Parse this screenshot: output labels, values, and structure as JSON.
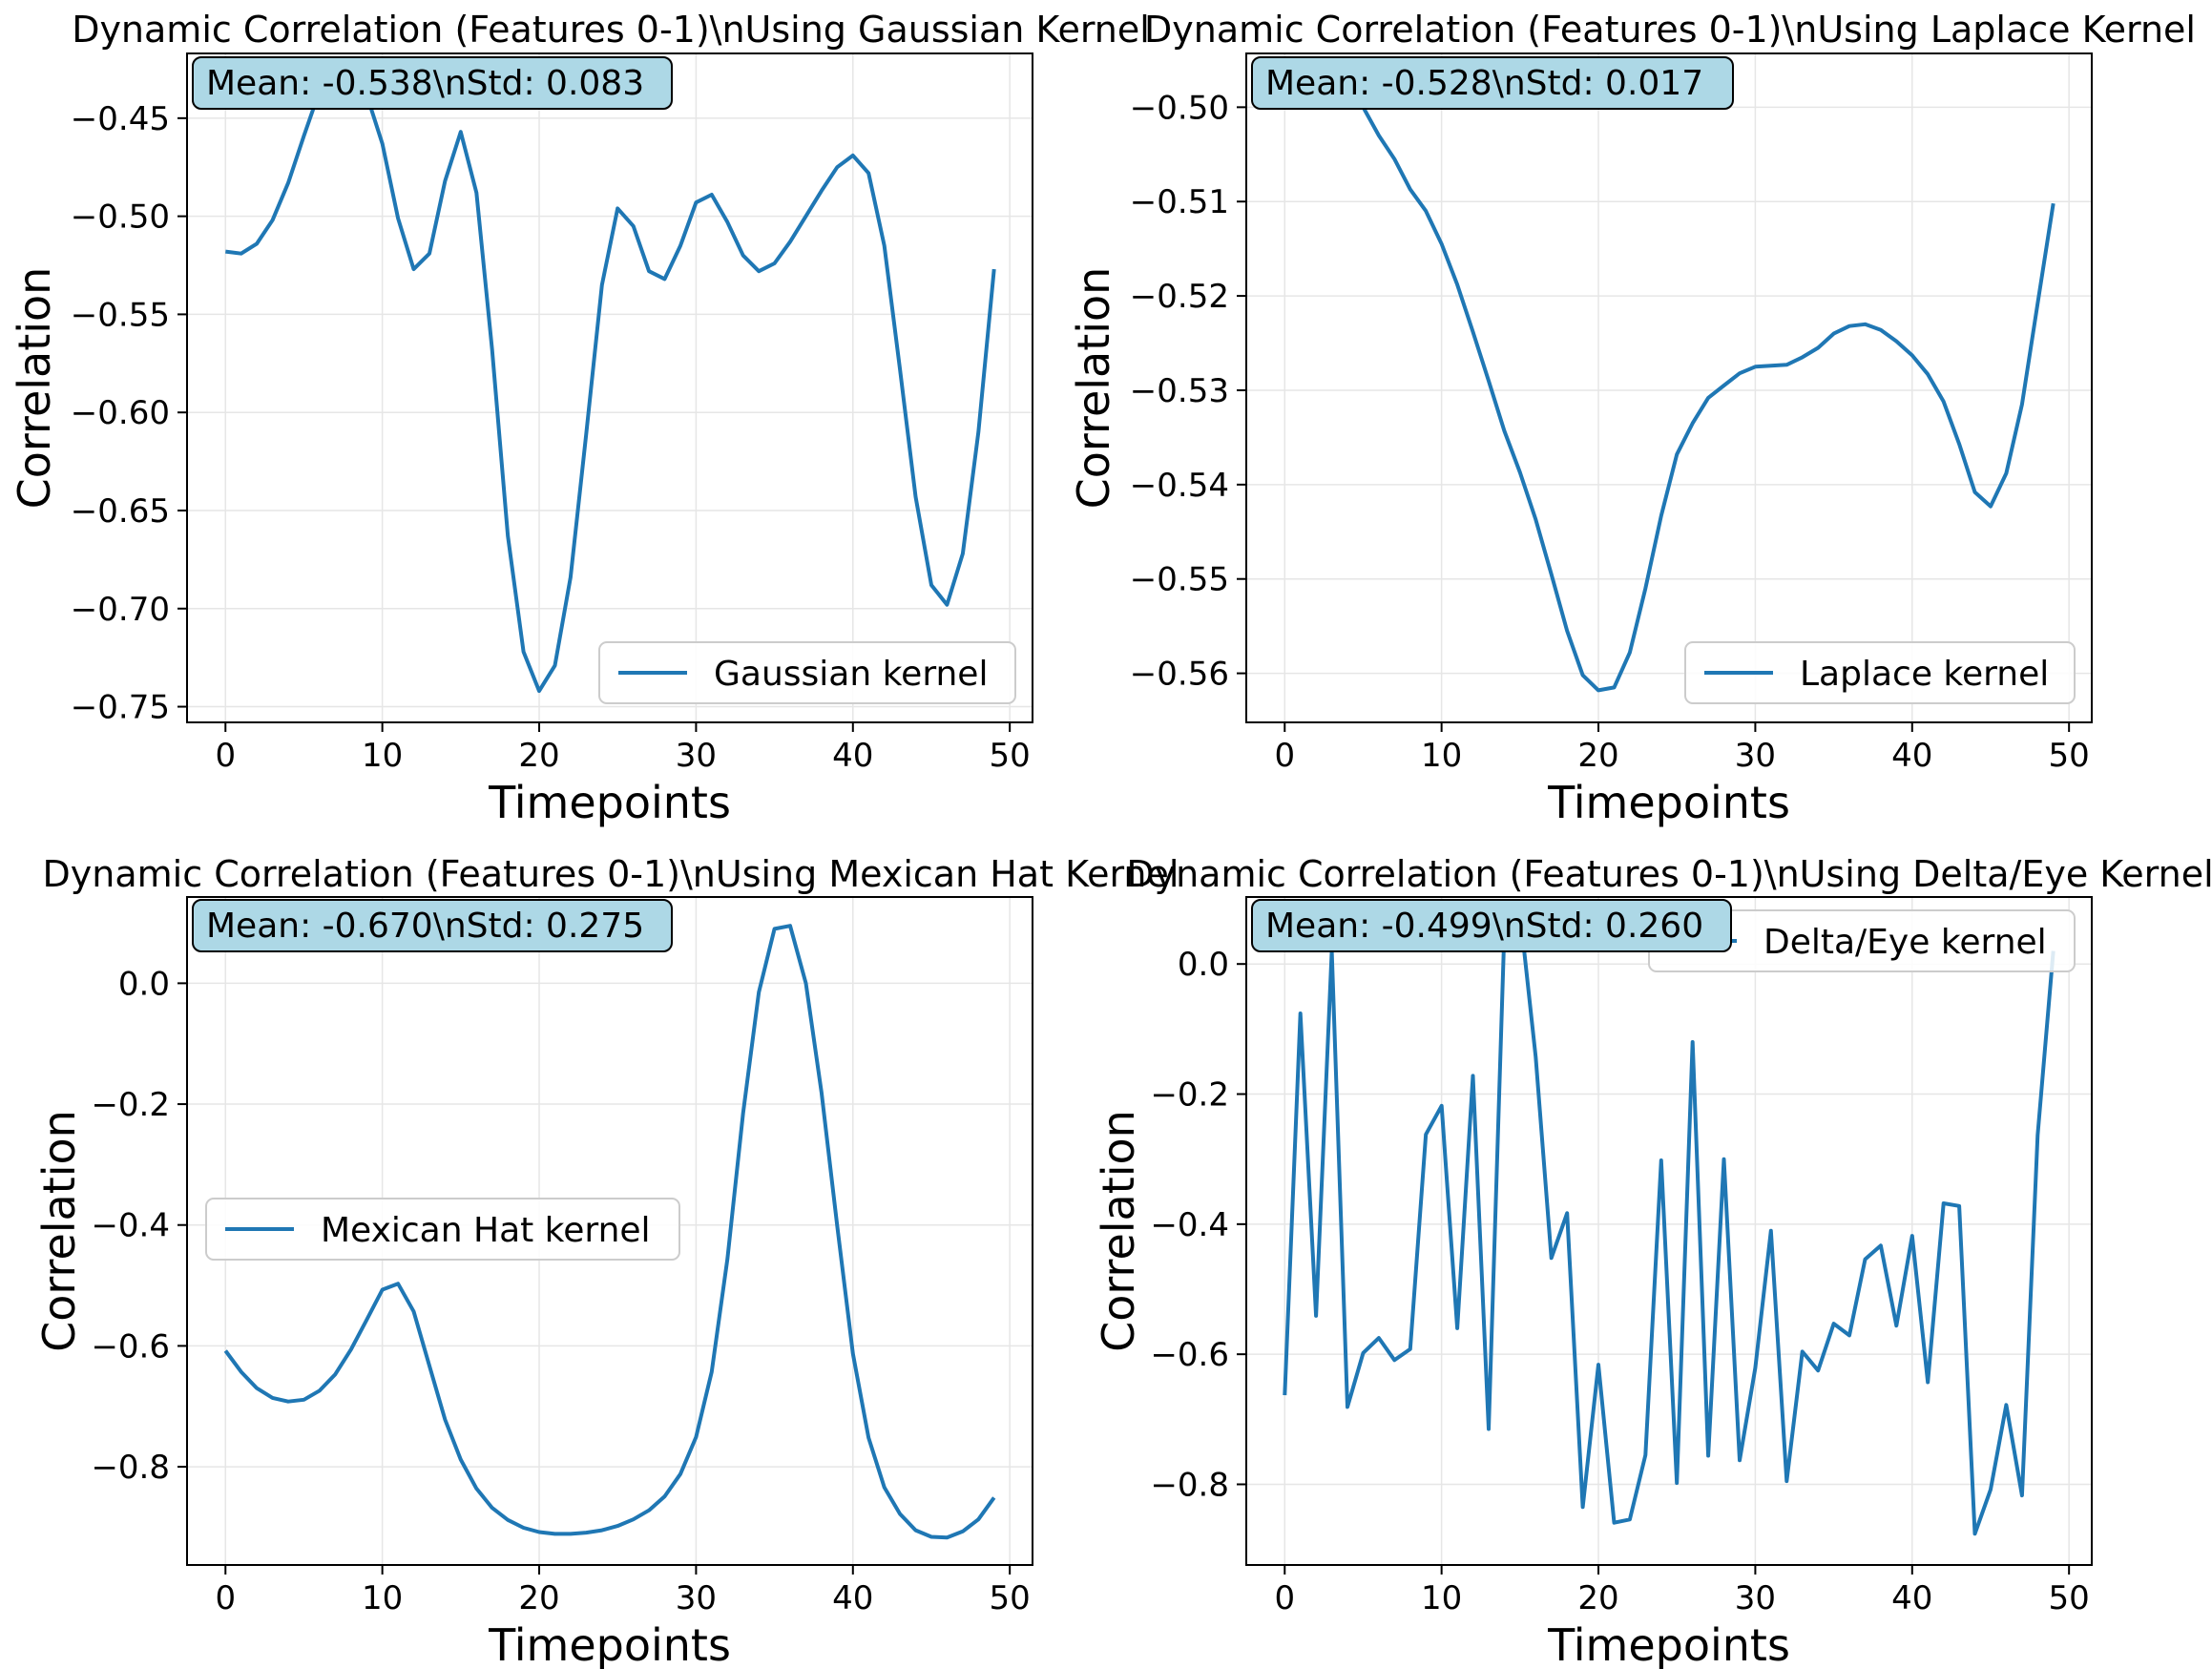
{
  "chart_data": [
    {
      "type": "line",
      "title": "Dynamic Correlation (Features 0-1)\\nUsing Gaussian Kernel",
      "xlabel": "Timepoints",
      "ylabel": "Correlation",
      "xlim": [
        -2.45,
        51.45
      ],
      "ylim": [
        -0.758,
        -0.417
      ],
      "xticks": [
        0,
        10,
        20,
        30,
        40,
        50
      ],
      "yticks": [
        -0.75,
        -0.7,
        -0.65,
        -0.6,
        -0.55,
        -0.5,
        -0.45
      ],
      "ytick_labels": [
        "−0.75",
        "−0.70",
        "−0.65",
        "−0.60",
        "−0.55",
        "−0.50",
        "−0.45"
      ],
      "grid": true,
      "legend": "lower-right",
      "stats_box": "Mean: -0.538\\nStd: 0.083",
      "series": [
        {
          "name": "Gaussian kernel",
          "x": [
            0,
            1,
            2,
            3,
            4,
            5,
            6,
            7,
            8,
            9,
            10,
            11,
            12,
            13,
            14,
            15,
            16,
            17,
            18,
            19,
            20,
            21,
            22,
            23,
            24,
            25,
            26,
            27,
            28,
            29,
            30,
            31,
            32,
            33,
            34,
            35,
            36,
            37,
            38,
            39,
            40,
            41,
            42,
            43,
            44,
            45,
            46,
            47,
            48,
            49
          ],
          "values": [
            -0.518,
            -0.519,
            -0.514,
            -0.502,
            -0.483,
            -0.459,
            -0.436,
            -0.423,
            -0.427,
            -0.438,
            -0.463,
            -0.501,
            -0.527,
            -0.519,
            -0.482,
            -0.457,
            -0.488,
            -0.568,
            -0.663,
            -0.722,
            -0.742,
            -0.729,
            -0.684,
            -0.611,
            -0.535,
            -0.496,
            -0.505,
            -0.528,
            -0.532,
            -0.515,
            -0.493,
            -0.489,
            -0.503,
            -0.52,
            -0.528,
            -0.524,
            -0.513,
            -0.5,
            -0.487,
            -0.475,
            -0.469,
            -0.478,
            -0.515,
            -0.578,
            -0.643,
            -0.688,
            -0.698,
            -0.672,
            -0.61,
            -0.527
          ]
        }
      ]
    },
    {
      "type": "line",
      "title": "Dynamic Correlation (Features 0-1)\\nUsing Laplace Kernel",
      "xlabel": "Timepoints",
      "ylabel": "Correlation",
      "xlim": [
        -2.45,
        51.45
      ],
      "ylim": [
        -0.5652,
        -0.4943
      ],
      "xticks": [
        0,
        10,
        20,
        30,
        40,
        50
      ],
      "yticks": [
        -0.56,
        -0.55,
        -0.54,
        -0.53,
        -0.52,
        -0.51,
        -0.5
      ],
      "ytick_labels": [
        "−0.56",
        "−0.55",
        "−0.54",
        "−0.53",
        "−0.52",
        "−0.51",
        "−0.50"
      ],
      "grid": true,
      "legend": "lower-right",
      "stats_box": "Mean: -0.528\\nStd: 0.017",
      "series": [
        {
          "name": "Laplace kernel",
          "x": [
            0,
            1,
            2,
            3,
            4,
            5,
            6,
            7,
            8,
            9,
            10,
            11,
            12,
            13,
            14,
            15,
            16,
            17,
            18,
            19,
            20,
            21,
            22,
            23,
            24,
            25,
            26,
            27,
            28,
            29,
            30,
            31,
            32,
            33,
            34,
            35,
            36,
            37,
            38,
            39,
            40,
            41,
            42,
            43,
            44,
            45,
            46,
            47,
            48,
            49
          ],
          "values": [
            -0.4965,
            -0.497,
            -0.4978,
            -0.4985,
            -0.499,
            -0.5,
            -0.503,
            -0.5055,
            -0.5087,
            -0.511,
            -0.5145,
            -0.5188,
            -0.5238,
            -0.529,
            -0.5343,
            -0.5387,
            -0.5437,
            -0.5495,
            -0.5555,
            -0.5602,
            -0.5618,
            -0.5615,
            -0.5578,
            -0.551,
            -0.5433,
            -0.5368,
            -0.5335,
            -0.5308,
            -0.5295,
            -0.5282,
            -0.5275,
            -0.5274,
            -0.5273,
            -0.5265,
            -0.5255,
            -0.524,
            -0.5232,
            -0.523,
            -0.5236,
            -0.5248,
            -0.5263,
            -0.5283,
            -0.5312,
            -0.5357,
            -0.5408,
            -0.5423,
            -0.5388,
            -0.5315,
            -0.5208,
            -0.5102
          ]
        }
      ]
    },
    {
      "type": "line",
      "title": "Dynamic Correlation (Features 0-1)\\nUsing Mexican Hat Kernel",
      "xlabel": "Timepoints",
      "ylabel": "Correlation",
      "xlim": [
        -2.45,
        51.45
      ],
      "ylim": [
        -0.9625,
        0.1427
      ],
      "xticks": [
        0,
        10,
        20,
        30,
        40,
        50
      ],
      "yticks": [
        -0.8,
        -0.6,
        -0.4,
        -0.2,
        0.0
      ],
      "ytick_labels": [
        "−0.8",
        "−0.6",
        "−0.4",
        "−0.2",
        "0.0"
      ],
      "grid": true,
      "legend": "center-left",
      "stats_box": "Mean: -0.670\\nStd: 0.275",
      "series": [
        {
          "name": "Mexican Hat kernel",
          "x": [
            0,
            1,
            2,
            3,
            4,
            5,
            6,
            7,
            8,
            9,
            10,
            11,
            12,
            13,
            14,
            15,
            16,
            17,
            18,
            19,
            20,
            21,
            22,
            23,
            24,
            25,
            26,
            27,
            28,
            29,
            30,
            31,
            32,
            33,
            34,
            35,
            36,
            37,
            38,
            39,
            40,
            41,
            42,
            43,
            44,
            45,
            46,
            47,
            48,
            49
          ],
          "values": [
            -0.608,
            -0.643,
            -0.67,
            -0.686,
            -0.692,
            -0.689,
            -0.674,
            -0.647,
            -0.606,
            -0.557,
            -0.507,
            -0.497,
            -0.543,
            -0.633,
            -0.722,
            -0.788,
            -0.836,
            -0.868,
            -0.888,
            -0.901,
            -0.908,
            -0.911,
            -0.911,
            -0.909,
            -0.905,
            -0.898,
            -0.887,
            -0.872,
            -0.849,
            -0.812,
            -0.751,
            -0.643,
            -0.456,
            -0.215,
            -0.015,
            0.09,
            0.095,
            0.0,
            -0.181,
            -0.401,
            -0.613,
            -0.752,
            -0.834,
            -0.878,
            -0.905,
            -0.916,
            -0.917,
            -0.907,
            -0.887,
            -0.851
          ]
        }
      ]
    },
    {
      "type": "line",
      "title": "Dynamic Correlation (Features 0-1)\\nUsing Delta/Eye Kernel",
      "xlabel": "Timepoints",
      "ylabel": "Correlation",
      "xlim": [
        -2.45,
        51.45
      ],
      "ylim": [
        -0.924,
        0.103
      ],
      "xticks": [
        0,
        10,
        20,
        30,
        40,
        50
      ],
      "yticks": [
        -0.8,
        -0.6,
        -0.4,
        -0.2,
        0.0
      ],
      "ytick_labels": [
        "−0.8",
        "−0.6",
        "−0.4",
        "−0.2",
        "0.0"
      ],
      "grid": true,
      "legend": "upper-right",
      "stats_box": "Mean: -0.499\\nStd: 0.260",
      "series": [
        {
          "name": "Delta/Eye kernel",
          "x": [
            0,
            1,
            2,
            3,
            4,
            5,
            6,
            7,
            8,
            9,
            10,
            11,
            12,
            13,
            14,
            15,
            16,
            17,
            18,
            19,
            20,
            21,
            22,
            23,
            24,
            25,
            26,
            27,
            28,
            29,
            30,
            31,
            32,
            33,
            34,
            35,
            36,
            37,
            38,
            39,
            40,
            41,
            42,
            43,
            44,
            45,
            46,
            47,
            48,
            49
          ],
          "values": [
            -0.663,
            -0.076,
            -0.541,
            0.02,
            -0.681,
            -0.598,
            -0.575,
            -0.609,
            -0.592,
            -0.262,
            -0.218,
            -0.56,
            -0.172,
            -0.715,
            0.05,
            0.08,
            -0.143,
            -0.452,
            -0.383,
            -0.835,
            -0.616,
            -0.859,
            -0.854,
            -0.755,
            -0.302,
            -0.798,
            -0.12,
            -0.756,
            -0.3,
            -0.763,
            -0.621,
            -0.41,
            -0.795,
            -0.596,
            -0.625,
            -0.553,
            -0.571,
            -0.454,
            -0.433,
            -0.556,
            -0.418,
            -0.643,
            -0.368,
            -0.372,
            -0.876,
            -0.808,
            -0.678,
            -0.817,
            -0.263,
            0.02
          ]
        }
      ]
    }
  ]
}
